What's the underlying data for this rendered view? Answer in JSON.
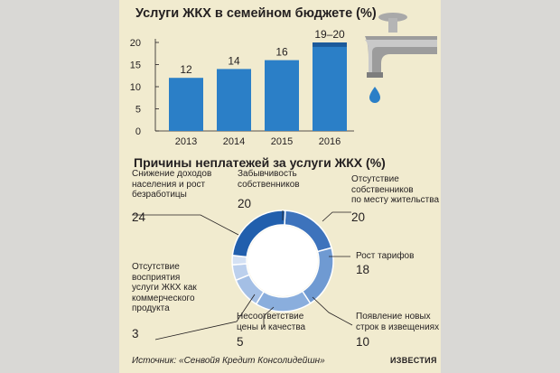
{
  "colors": {
    "background": "#f1ebcf",
    "bar": "#2b7fc7",
    "bar_top": "#1c5a9b"
  },
  "chart_data": [
    {
      "type": "bar",
      "title": "Услуги ЖКХ в семейном бюджете (%)",
      "categories": [
        "2013",
        "2014",
        "2015",
        "2016"
      ],
      "values": [
        12,
        14,
        16,
        20
      ],
      "data_labels": [
        "12",
        "14",
        "16",
        "19–20"
      ],
      "range_low_2016": 19,
      "y_ticks": [
        "0",
        "5",
        "10",
        "15",
        "20"
      ],
      "ylim": [
        0,
        20
      ],
      "grid": false
    },
    {
      "type": "pie",
      "title": "Причины неплатежей за услуги ЖКХ (%)",
      "slices": [
        {
          "label": "Забывчивость собственников",
          "value": 20,
          "color": "#3d73bc"
        },
        {
          "label": "Отсутствие собственников по месту жительства",
          "value": 20,
          "color": "#6f9ad2"
        },
        {
          "label": "Рост тарифов",
          "value": 18,
          "color": "#8aaedd"
        },
        {
          "label": "Появление новых строк в извещениях",
          "value": 10,
          "color": "#a4bfe5"
        },
        {
          "label": "Несоответствие цены и качества",
          "value": 5,
          "color": "#bcd0ed"
        },
        {
          "label": "Отсутствие восприятия услуги ЖКХ как коммерческого продукта",
          "value": 3,
          "color": "#d4e1f4"
        },
        {
          "label": "Снижение доходов населения и рост безработицы",
          "value": 24,
          "color": "#215fad"
        }
      ],
      "labels": {
        "zab": "Забывчивость\nсобственников",
        "otsut": "Отсутствие\nсобственников\nпо месту жительства",
        "rost": "Рост тарифов",
        "pojav": "Появление новых\nстрок в извещениях",
        "nesoot": "Несоответствие\nцены и качества",
        "vospr": "Отсутствие\nвосприятия\nуслуги ЖКХ как\nкоммерческого\nпродукта",
        "snizh": "Снижение доходов\nнаселения и рост\nбезработицы"
      },
      "numbers": {
        "zab": "20",
        "otsut": "20",
        "rost": "18",
        "pojav": "10",
        "nesoot": "5",
        "vospr": "3",
        "snizh": "24"
      }
    }
  ],
  "footer": {
    "source": "Источник: «Сенвойя Кредит Консолидейшн»",
    "brand": "ИЗВЕСТИЯ"
  }
}
